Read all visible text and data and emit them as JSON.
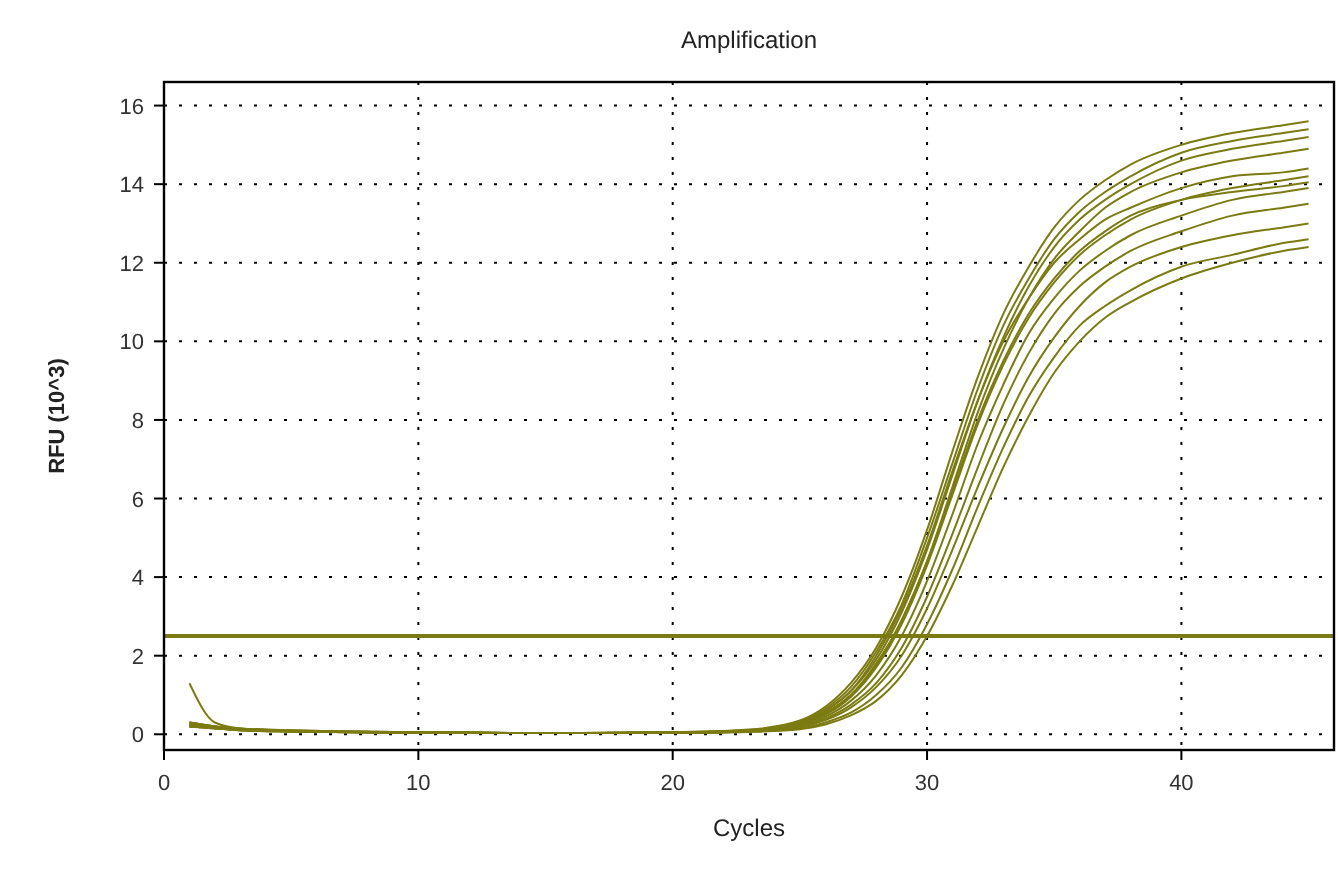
{
  "chart_data": {
    "type": "line",
    "title": "Amplification",
    "xlabel": "Cycles",
    "ylabel": "RFU (10^3)",
    "x": [
      1,
      2,
      3,
      5,
      10,
      15,
      20,
      23,
      25,
      26,
      27,
      28,
      29,
      30,
      31,
      32,
      33,
      34,
      35,
      36,
      37,
      38,
      40,
      42,
      44,
      45
    ],
    "xlim": [
      0,
      46
    ],
    "ylim": [
      -0.4,
      16.6
    ],
    "xticks": [
      0,
      10,
      20,
      30,
      40
    ],
    "yticks": [
      0,
      2,
      4,
      6,
      8,
      10,
      12,
      14,
      16
    ],
    "grid": true,
    "ref_lines": [
      {
        "axis": "y",
        "value": 2.5,
        "color": "#7b7b12"
      }
    ],
    "series": [
      {
        "color": "#7b7b12",
        "values": [
          0.3,
          0.2,
          0.15,
          0.1,
          0.05,
          0.03,
          0.05,
          0.12,
          0.35,
          0.7,
          1.3,
          2.2,
          3.5,
          5.2,
          7.2,
          9.1,
          10.7,
          11.9,
          12.9,
          13.6,
          14.1,
          14.5,
          15.0,
          15.3,
          15.5,
          15.6
        ]
      },
      {
        "color": "#7b7b12",
        "values": [
          0.25,
          0.2,
          0.12,
          0.08,
          0.04,
          0.03,
          0.04,
          0.1,
          0.3,
          0.6,
          1.1,
          1.9,
          3.1,
          4.7,
          6.6,
          8.5,
          10.1,
          11.4,
          12.4,
          13.1,
          13.6,
          14.0,
          14.6,
          14.9,
          15.1,
          15.2
        ]
      },
      {
        "color": "#7b7b12",
        "values": [
          0.2,
          0.18,
          0.12,
          0.08,
          0.05,
          0.03,
          0.04,
          0.1,
          0.28,
          0.55,
          1.0,
          1.8,
          2.9,
          4.4,
          6.3,
          8.2,
          9.8,
          11.1,
          12.1,
          12.8,
          13.4,
          13.8,
          14.3,
          14.6,
          14.8,
          14.9
        ]
      },
      {
        "color": "#7b7b12",
        "values": [
          0.3,
          0.2,
          0.14,
          0.09,
          0.05,
          0.03,
          0.05,
          0.1,
          0.3,
          0.6,
          1.1,
          2.0,
          3.2,
          4.8,
          6.7,
          8.5,
          10.0,
          11.1,
          12.0,
          12.6,
          13.1,
          13.4,
          13.9,
          14.2,
          14.3,
          14.4
        ]
      },
      {
        "color": "#7b7b12",
        "values": [
          0.2,
          0.15,
          0.1,
          0.07,
          0.04,
          0.03,
          0.04,
          0.09,
          0.25,
          0.5,
          0.95,
          1.7,
          2.8,
          4.3,
          6.1,
          7.9,
          9.4,
          10.6,
          11.5,
          12.2,
          12.7,
          13.1,
          13.6,
          13.9,
          14.1,
          14.2
        ]
      },
      {
        "color": "#7b7b12",
        "values": [
          0.25,
          0.18,
          0.12,
          0.08,
          0.05,
          0.03,
          0.04,
          0.08,
          0.22,
          0.45,
          0.85,
          1.5,
          2.5,
          3.9,
          5.6,
          7.4,
          8.9,
          10.2,
          11.1,
          11.8,
          12.3,
          12.7,
          13.2,
          13.6,
          13.8,
          13.9
        ]
      },
      {
        "color": "#7b7b12",
        "values": [
          0.2,
          0.16,
          0.1,
          0.07,
          0.04,
          0.03,
          0.04,
          0.08,
          0.2,
          0.4,
          0.75,
          1.3,
          2.2,
          3.5,
          5.1,
          6.8,
          8.4,
          9.7,
          10.7,
          11.4,
          11.9,
          12.3,
          12.8,
          13.2,
          13.4,
          13.5
        ]
      },
      {
        "color": "#7b7b12",
        "values": [
          0.25,
          0.18,
          0.12,
          0.08,
          0.05,
          0.03,
          0.04,
          0.07,
          0.15,
          0.3,
          0.55,
          1.0,
          1.7,
          2.8,
          4.2,
          5.8,
          7.3,
          8.6,
          9.6,
          10.4,
          10.9,
          11.3,
          11.9,
          12.2,
          12.5,
          12.6
        ]
      },
      {
        "color": "#7b7b12",
        "values": [
          0.2,
          0.15,
          0.1,
          0.07,
          0.04,
          0.03,
          0.03,
          0.06,
          0.13,
          0.25,
          0.48,
          0.85,
          1.5,
          2.5,
          3.8,
          5.3,
          6.8,
          8.1,
          9.2,
          10.0,
          10.6,
          11.0,
          11.6,
          12.0,
          12.3,
          12.4
        ]
      },
      {
        "color": "#7b7b12",
        "values": [
          1.3,
          0.3,
          0.15,
          0.1,
          0.05,
          0.03,
          0.05,
          0.11,
          0.32,
          0.65,
          1.2,
          2.1,
          3.3,
          5.0,
          6.9,
          8.8,
          10.4,
          11.6,
          12.6,
          13.3,
          13.8,
          14.2,
          14.8,
          15.1,
          15.3,
          15.4
        ]
      },
      {
        "color": "#7b7b12",
        "values": [
          0.3,
          0.2,
          0.12,
          0.08,
          0.05,
          0.03,
          0.04,
          0.09,
          0.26,
          0.52,
          1.0,
          1.75,
          2.9,
          4.4,
          6.2,
          8.0,
          9.5,
          10.7,
          11.6,
          12.3,
          12.8,
          13.2,
          13.6,
          13.8,
          13.95,
          14.05
        ]
      },
      {
        "color": "#7b7b12",
        "values": [
          0.22,
          0.16,
          0.1,
          0.07,
          0.04,
          0.03,
          0.04,
          0.07,
          0.18,
          0.36,
          0.68,
          1.2,
          2.0,
          3.2,
          4.7,
          6.3,
          7.8,
          9.1,
          10.1,
          10.9,
          11.5,
          11.9,
          12.4,
          12.7,
          12.9,
          13.0
        ]
      }
    ]
  }
}
